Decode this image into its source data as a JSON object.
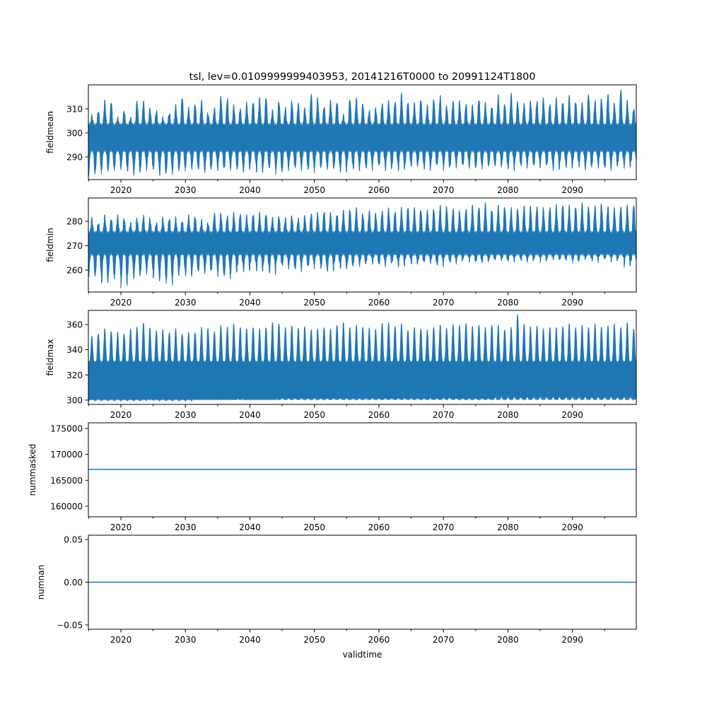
{
  "chart_data": [
    {
      "type": "line",
      "title": "tsl, lev=0.0109999999403953, 20141216T0000 to 20991124T1800",
      "ylabel": "fieldmean",
      "xlabel": "",
      "xlim": [
        2014.96,
        2099.9
      ],
      "ylim": [
        280.6,
        320
      ],
      "xticks": [
        2020,
        2030,
        2040,
        2050,
        2060,
        2070,
        2080,
        2090
      ],
      "yticks": [
        290,
        300,
        310
      ],
      "ytick_labels": [
        "290",
        "300",
        "310"
      ],
      "series": [
        {
          "name": "fieldmean",
          "color": "#1f77b4",
          "start_year": 2015,
          "base_high": 303,
          "base_low": 293,
          "annual_max": [
            307,
            309,
            313,
            313,
            306,
            309,
            306,
            313,
            313,
            310,
            309,
            306,
            308,
            311,
            315,
            310,
            312,
            313,
            308,
            310,
            315,
            314,
            311,
            310,
            312,
            313,
            314,
            315,
            309,
            313,
            310,
            313,
            312,
            310,
            316,
            314,
            311,
            313,
            313,
            307,
            314,
            314,
            312,
            309,
            310,
            312,
            313,
            313,
            316,
            313,
            312,
            314,
            311,
            314,
            315,
            311,
            313,
            313,
            312,
            311,
            314,
            312,
            311,
            315,
            312,
            316,
            313,
            312,
            313,
            313,
            314,
            312,
            314,
            313,
            315,
            313,
            312,
            316,
            313,
            314,
            316,
            312,
            318,
            313,
            310
          ],
          "annual_min": [
            283,
            283,
            285,
            284,
            286,
            285,
            284,
            283,
            285,
            286,
            284,
            283,
            283,
            285,
            284,
            286,
            285,
            285,
            284,
            286,
            285,
            285,
            286,
            284,
            285,
            286,
            284,
            285,
            286,
            283,
            285,
            286,
            285,
            286,
            284,
            286,
            285,
            286,
            285,
            284,
            286,
            285,
            286,
            285,
            287,
            286,
            285,
            286,
            285,
            286,
            287,
            286,
            285,
            286,
            287,
            285,
            286,
            287,
            286,
            286,
            285,
            287,
            286,
            287,
            286,
            285,
            287,
            286,
            287,
            286,
            287,
            286,
            285,
            287,
            286,
            287,
            286,
            285,
            287,
            286,
            285,
            286,
            287,
            286,
            287
          ]
        }
      ]
    },
    {
      "type": "line",
      "ylabel": "fieldmin",
      "xlim": [
        2014.96,
        2099.9
      ],
      "ylim": [
        251,
        289.6
      ],
      "xticks": [
        2020,
        2030,
        2040,
        2050,
        2060,
        2070,
        2080,
        2090
      ],
      "yticks": [
        260,
        270,
        280
      ],
      "ytick_labels": [
        "260",
        "270",
        "280"
      ],
      "series": [
        {
          "name": "fieldmin",
          "color": "#1f77b4",
          "start_year": 2015,
          "base_high": 275,
          "base_low": 267,
          "annual_max": [
            281,
            279,
            282,
            281,
            282,
            281,
            279,
            281,
            282,
            281,
            279,
            281,
            281,
            281,
            280,
            282,
            282,
            280,
            279,
            283,
            283,
            282,
            283,
            283,
            282,
            283,
            283,
            283,
            281,
            282,
            281,
            282,
            281,
            282,
            283,
            283,
            284,
            283,
            283,
            284,
            285,
            285,
            283,
            284,
            283,
            284,
            285,
            284,
            285,
            286,
            285,
            285,
            284,
            285,
            286,
            286,
            285,
            284,
            285,
            286,
            286,
            287,
            285,
            286,
            286,
            285,
            285,
            286,
            286,
            286,
            285,
            286,
            286,
            287,
            286,
            286,
            287,
            286,
            286,
            287,
            286,
            285,
            286,
            286,
            287
          ],
          "annual_min": [
            258,
            257,
            255,
            256,
            258,
            253,
            258,
            257,
            259,
            260,
            256,
            257,
            254,
            258,
            259,
            258,
            259,
            260,
            259,
            260,
            258,
            257,
            259,
            261,
            260,
            262,
            260,
            261,
            259,
            262,
            262,
            261,
            260,
            262,
            261,
            263,
            260,
            260,
            262,
            261,
            261,
            263,
            262,
            264,
            263,
            262,
            263,
            263,
            262,
            264,
            263,
            263,
            264,
            263,
            262,
            264,
            263,
            264,
            265,
            264,
            263,
            264,
            264,
            265,
            264,
            264,
            265,
            264,
            264,
            265,
            264,
            265,
            265,
            264,
            265,
            263,
            265,
            265,
            264,
            265,
            265,
            264,
            265,
            262,
            263
          ]
        }
      ]
    },
    {
      "type": "line",
      "ylabel": "fieldmax",
      "xlim": [
        2014.96,
        2099.9
      ],
      "ylim": [
        296.6,
        371.2
      ],
      "xticks": [
        2020,
        2030,
        2040,
        2050,
        2060,
        2070,
        2080,
        2090
      ],
      "yticks": [
        300,
        320,
        340,
        360
      ],
      "ytick_labels": [
        "300",
        "320",
        "340",
        "360"
      ],
      "series": [
        {
          "name": "fieldmax",
          "color": "#1f77b4",
          "start_year": 2015,
          "base_high": 330,
          "base_low": 301,
          "annual_max": [
            350,
            353,
            356,
            355,
            353,
            353,
            356,
            358,
            361,
            357,
            355,
            355,
            354,
            356,
            353,
            353,
            354,
            357,
            357,
            354,
            359,
            358,
            360,
            358,
            356,
            358,
            356,
            358,
            361,
            361,
            357,
            359,
            357,
            358,
            356,
            356,
            358,
            356,
            360,
            361,
            358,
            359,
            358,
            357,
            356,
            361,
            361,
            359,
            360,
            356,
            357,
            357,
            355,
            358,
            359,
            357,
            360,
            359,
            361,
            358,
            360,
            357,
            360,
            359,
            356,
            357,
            368,
            360,
            358,
            359,
            356,
            358,
            357,
            359,
            360,
            358,
            359,
            358,
            360,
            358,
            359,
            360,
            358,
            361,
            357
          ],
          "annual_min": [
            300,
            300,
            300,
            300,
            300,
            300,
            300,
            300,
            300,
            301,
            300,
            300,
            300,
            300,
            300,
            300,
            301,
            301,
            301,
            301,
            301,
            301,
            301,
            302,
            301,
            301,
            301,
            301,
            301,
            302,
            302,
            302,
            302,
            302,
            302,
            302,
            302,
            302,
            302,
            302,
            302,
            302,
            302,
            302,
            302,
            302,
            302,
            302,
            302,
            302,
            302,
            302,
            302,
            302,
            302,
            303,
            302,
            302,
            302,
            302,
            302,
            302,
            302,
            303,
            303,
            303,
            303,
            303,
            303,
            303,
            303,
            303,
            303,
            303,
            303,
            303,
            303,
            303,
            303,
            303,
            303,
            303,
            303,
            303,
            303
          ]
        }
      ]
    },
    {
      "type": "line",
      "ylabel": "nummasked",
      "xlim": [
        2014.96,
        2099.9
      ],
      "ylim": [
        157950,
        176090
      ],
      "xticks": [
        2020,
        2030,
        2040,
        2050,
        2060,
        2070,
        2080,
        2090
      ],
      "yticks": [
        160000,
        165000,
        170000,
        175000
      ],
      "ytick_labels": [
        "160000",
        "165000",
        "170000",
        "175000"
      ],
      "series": [
        {
          "name": "nummasked",
          "color": "#1f77b4",
          "constant": 167100
        }
      ]
    },
    {
      "type": "line",
      "ylabel": "numnan",
      "xlabel": "validtime",
      "xlim": [
        2014.96,
        2099.9
      ],
      "ylim": [
        -0.055,
        0.055
      ],
      "xticks": [
        2020,
        2030,
        2040,
        2050,
        2060,
        2070,
        2080,
        2090
      ],
      "yticks": [
        -0.05,
        0.0,
        0.05
      ],
      "ytick_labels": [
        "−0.05",
        "0.00",
        "0.05"
      ],
      "series": [
        {
          "name": "numnan",
          "color": "#1f77b4",
          "constant": 0
        }
      ]
    }
  ]
}
